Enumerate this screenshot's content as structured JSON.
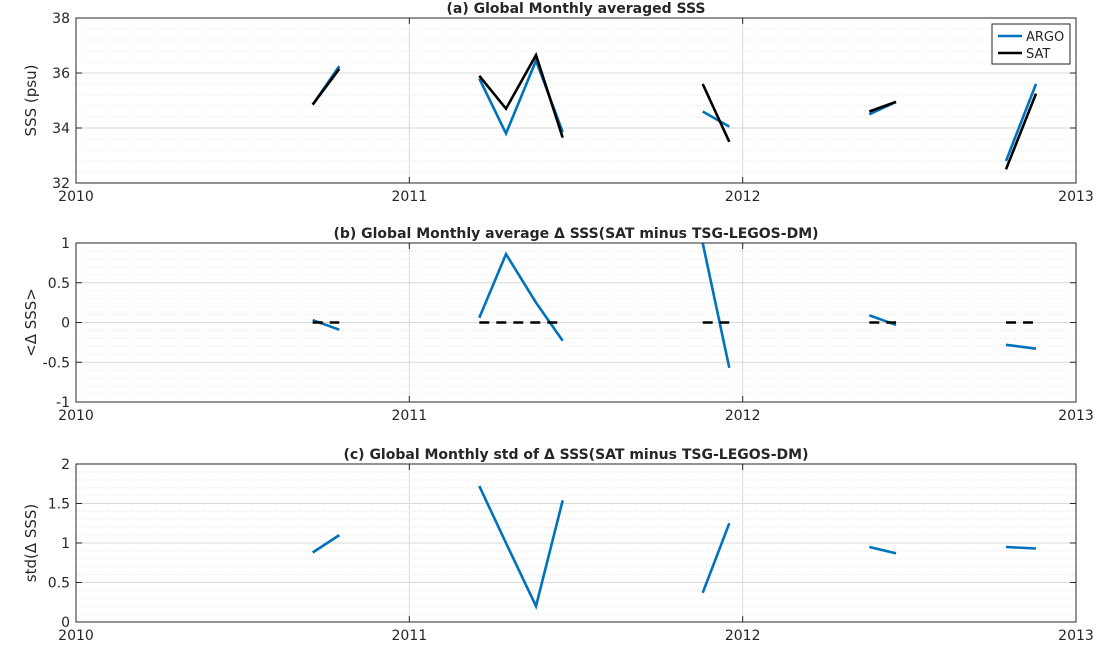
{
  "colors": {
    "argo": "#0072BD",
    "sat": "#000000",
    "grid": "#d9d9d9",
    "axis": "#262626"
  },
  "chart_data": [
    {
      "type": "line",
      "title": "(a) Global Monthly averaged SSS",
      "xlabel": "",
      "ylabel": "SSS (psu)",
      "xlim": [
        2010,
        2013
      ],
      "ylim": [
        32,
        38
      ],
      "xticks": [
        2010,
        2011,
        2012,
        2013
      ],
      "xtick_labels": [
        "2010",
        "2011",
        "2012",
        "2013"
      ],
      "yticks": [
        32,
        34,
        36,
        38
      ],
      "ytick_labels": [
        "32",
        "34",
        "36",
        "38"
      ],
      "minor_step": 0.4,
      "grid": true,
      "legend": {
        "position": "top-right",
        "entries": [
          "ARGO",
          "SAT"
        ]
      },
      "series": [
        {
          "name": "ARGO",
          "color": "#0072BD",
          "dashed": false,
          "segments": [
            [
              [
                2010.71,
                34.85
              ],
              [
                2010.79,
                36.25
              ]
            ],
            [
              [
                2011.21,
                35.8
              ],
              [
                2011.29,
                33.8
              ],
              [
                2011.38,
                36.45
              ],
              [
                2011.46,
                33.85
              ]
            ],
            [
              [
                2011.88,
                34.6
              ],
              [
                2011.96,
                34.05
              ]
            ],
            [
              [
                2012.38,
                34.5
              ],
              [
                2012.46,
                34.95
              ]
            ],
            [
              [
                2012.79,
                32.8
              ],
              [
                2012.88,
                35.6
              ]
            ]
          ]
        },
        {
          "name": "SAT",
          "color": "#000000",
          "dashed": false,
          "segments": [
            [
              [
                2010.71,
                34.85
              ],
              [
                2010.79,
                36.15
              ]
            ],
            [
              [
                2011.21,
                35.9
              ],
              [
                2011.29,
                34.7
              ],
              [
                2011.38,
                36.65
              ],
              [
                2011.46,
                33.65
              ]
            ],
            [
              [
                2011.88,
                35.6
              ],
              [
                2011.96,
                33.5
              ]
            ],
            [
              [
                2012.38,
                34.6
              ],
              [
                2012.46,
                34.95
              ]
            ],
            [
              [
                2012.79,
                32.5
              ],
              [
                2012.88,
                35.25
              ]
            ]
          ]
        }
      ]
    },
    {
      "type": "line",
      "title": "(b) Global Monthly average Δ SSS(SAT minus TSG-LEGOS-DM)",
      "xlabel": "",
      "ylabel": "<Δ SSS>",
      "xlim": [
        2010,
        2013
      ],
      "ylim": [
        -1,
        1
      ],
      "xticks": [
        2010,
        2011,
        2012,
        2013
      ],
      "xtick_labels": [
        "2010",
        "2011",
        "2012",
        "2013"
      ],
      "yticks": [
        -1,
        -0.5,
        0,
        0.5,
        1
      ],
      "ytick_labels": [
        "-1",
        "-0.5",
        "0",
        "0.5",
        "1"
      ],
      "minor_step": 0.1,
      "grid": true,
      "series": [
        {
          "name": "",
          "color": "#0072BD",
          "dashed": false,
          "segments": [
            [
              [
                2010.71,
                0.03
              ],
              [
                2010.79,
                -0.09
              ]
            ],
            [
              [
                2011.21,
                0.06
              ],
              [
                2011.29,
                0.86
              ],
              [
                2011.38,
                0.25
              ],
              [
                2011.46,
                -0.23
              ]
            ],
            [
              [
                2011.88,
                1.0
              ],
              [
                2011.96,
                -0.57
              ]
            ],
            [
              [
                2012.38,
                0.09
              ],
              [
                2012.46,
                -0.03
              ]
            ],
            [
              [
                2012.79,
                -0.28
              ],
              [
                2012.88,
                -0.33
              ]
            ]
          ]
        },
        {
          "name": "",
          "color": "#000000",
          "dashed": true,
          "segments": [
            [
              [
                2010.71,
                0
              ],
              [
                2010.79,
                0
              ]
            ],
            [
              [
                2011.21,
                0
              ],
              [
                2011.46,
                0
              ]
            ],
            [
              [
                2011.88,
                0
              ],
              [
                2011.96,
                0
              ]
            ],
            [
              [
                2012.38,
                0
              ],
              [
                2012.46,
                0
              ]
            ],
            [
              [
                2012.79,
                0
              ],
              [
                2012.88,
                0
              ]
            ]
          ]
        }
      ]
    },
    {
      "type": "line",
      "title": "(c) Global Monthly std of Δ SSS(SAT minus TSG-LEGOS-DM)",
      "xlabel": "",
      "ylabel": "std(Δ SSS)",
      "xlim": [
        2010,
        2013
      ],
      "ylim": [
        0,
        2
      ],
      "xticks": [
        2010,
        2011,
        2012,
        2013
      ],
      "xtick_labels": [
        "2010",
        "2011",
        "2012",
        "2013"
      ],
      "yticks": [
        0,
        0.5,
        1,
        1.5,
        2
      ],
      "ytick_labels": [
        "0",
        "0.5",
        "1",
        "1.5",
        "2"
      ],
      "minor_step": 0.1,
      "grid": true,
      "series": [
        {
          "name": "",
          "color": "#0072BD",
          "dashed": false,
          "segments": [
            [
              [
                2010.71,
                0.88
              ],
              [
                2010.79,
                1.1
              ]
            ],
            [
              [
                2011.21,
                1.72
              ],
              [
                2011.29,
                1.0
              ],
              [
                2011.38,
                0.2
              ],
              [
                2011.46,
                1.54
              ]
            ],
            [
              [
                2011.88,
                0.37
              ],
              [
                2011.96,
                1.25
              ]
            ],
            [
              [
                2012.38,
                0.95
              ],
              [
                2012.46,
                0.87
              ]
            ],
            [
              [
                2012.79,
                0.95
              ],
              [
                2012.88,
                0.93
              ]
            ]
          ]
        }
      ]
    }
  ]
}
